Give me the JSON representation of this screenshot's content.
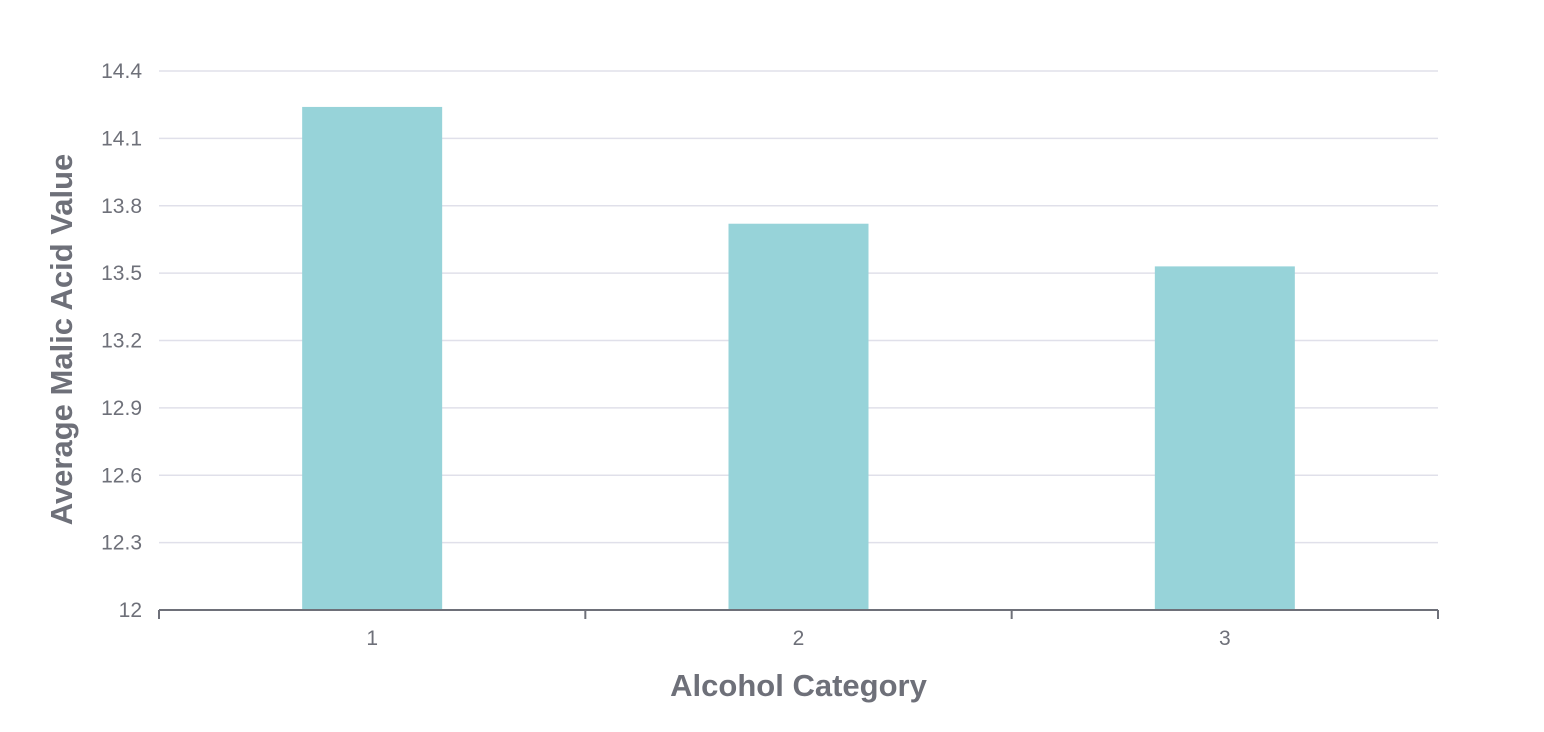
{
  "chart_data": {
    "type": "bar",
    "title": "",
    "xlabel": "Alcohol Category",
    "ylabel": "Average Malic Acid Value",
    "categories": [
      "1",
      "2",
      "3"
    ],
    "values": [
      14.24,
      13.72,
      13.53
    ],
    "ylim": [
      12,
      14.4
    ],
    "yticks": [
      "12",
      "12.3",
      "12.6",
      "12.9",
      "13.2",
      "13.5",
      "13.8",
      "14.1",
      "14.4"
    ],
    "grid": true,
    "legend": "none",
    "bar_color": "#97d3d9"
  }
}
